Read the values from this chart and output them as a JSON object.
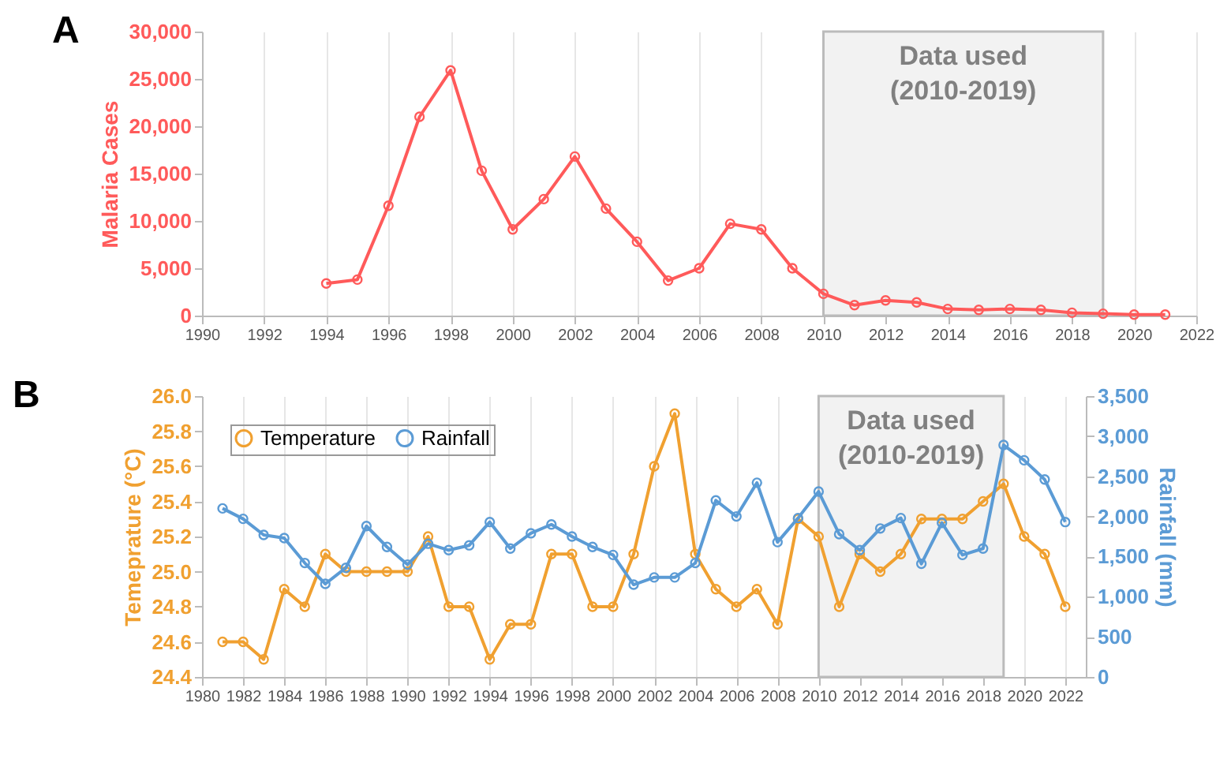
{
  "chart_data": [
    {
      "type": "line",
      "title": "A",
      "ylabel": "Malaria Cases",
      "x": [
        1994,
        1995,
        1996,
        1997,
        1998,
        1999,
        2000,
        2001,
        2002,
        2003,
        2004,
        2005,
        2006,
        2007,
        2008,
        2009,
        2010,
        2011,
        2012,
        2013,
        2014,
        2015,
        2016,
        2017,
        2018,
        2019,
        2020,
        2021
      ],
      "series": [
        {
          "color": "#ff5a5a",
          "values": [
            3400,
            3800,
            11600,
            21000,
            25900,
            15300,
            9100,
            12300,
            16800,
            11300,
            7800,
            3700,
            5000,
            9700,
            9100,
            5000,
            2300,
            1100,
            1600,
            1400,
            700,
            600,
            700,
            600,
            300,
            200,
            100,
            100
          ]
        }
      ],
      "xlim": [
        1990,
        2022
      ],
      "xticks": [
        1990,
        1992,
        1994,
        1996,
        1998,
        2000,
        2002,
        2004,
        2006,
        2008,
        2010,
        2012,
        2014,
        2016,
        2018,
        2020,
        2022
      ],
      "ylim": [
        0,
        30000
      ],
      "yticks": [
        0,
        {
          "value": 5000,
          "label": "5,000"
        },
        {
          "value": 10000,
          "label": "10,000"
        },
        {
          "value": 15000,
          "label": "15,000"
        },
        {
          "value": 20000,
          "label": "20,000"
        },
        {
          "value": 25000,
          "label": "25,000"
        },
        {
          "value": 30000,
          "label": "30,000"
        }
      ],
      "bands": [
        {
          "axis": "x",
          "from": 2010,
          "to": 2019,
          "label": "Data used (2010-2019)",
          "color": "#f2f2f2"
        }
      ],
      "grid": "x",
      "marker": "circle",
      "line_style": "solid"
    },
    {
      "type": "line",
      "title": "B",
      "ylabel": "Temeprature (°C)",
      "y2label": "Rainfall (mm)",
      "x": [
        1981,
        1982,
        1983,
        1984,
        1985,
        1986,
        1987,
        1988,
        1989,
        1990,
        1991,
        1992,
        1993,
        1994,
        1995,
        1996,
        1997,
        1998,
        1999,
        2000,
        2001,
        2002,
        2003,
        2004,
        2005,
        2006,
        2007,
        2008,
        2009,
        2010,
        2011,
        2012,
        2013,
        2014,
        2015,
        2016,
        2017,
        2018,
        2019,
        2020,
        2021,
        2022
      ],
      "series": [
        {
          "name": "Temperature",
          "color": "#f0a030",
          "values": [
            24.6,
            24.6,
            24.5,
            24.9,
            24.8,
            25.1,
            25.0,
            25.0,
            25.0,
            25.0,
            25.2,
            24.8,
            24.8,
            24.5,
            24.7,
            24.7,
            25.1,
            25.1,
            24.8,
            24.8,
            25.1,
            25.6,
            25.9,
            25.1,
            24.9,
            24.8,
            24.9,
            24.7,
            25.3,
            25.2,
            24.8,
            25.1,
            25.0,
            25.1,
            25.3,
            25.3,
            25.3,
            25.4,
            25.5,
            25.2,
            25.1,
            24.8
          ]
        },
        {
          "name": "Rainfall",
          "color": "#5b9bd5",
          "axis": "y2",
          "values": [
            2100,
            1970,
            1770,
            1730,
            1420,
            1160,
            1360,
            1880,
            1620,
            1400,
            1660,
            1580,
            1640,
            1930,
            1600,
            1790,
            1900,
            1750,
            1620,
            1520,
            1150,
            1240,
            1240,
            1420,
            2200,
            2000,
            2420,
            1680,
            1980,
            2310,
            1780,
            1580,
            1850,
            1980,
            1410,
            1920,
            1520,
            1600,
            2890,
            2700,
            2460,
            1930
          ]
        }
      ],
      "xlim": [
        1980,
        2023
      ],
      "xticks": [
        1980,
        1982,
        1984,
        1986,
        1988,
        1990,
        1992,
        1994,
        1996,
        1998,
        2000,
        2002,
        2004,
        2006,
        2008,
        2010,
        2012,
        2014,
        2016,
        2018,
        2020,
        2022
      ],
      "ylim": [
        24.4,
        26.0
      ],
      "yticks": [
        {
          "value": 24.4,
          "label": "24.4"
        },
        {
          "value": 24.6,
          "label": "24.6"
        },
        {
          "value": 24.8,
          "label": "24.8"
        },
        {
          "value": 25.0,
          "label": "25.0"
        },
        {
          "value": 25.2,
          "label": "25.2"
        },
        {
          "value": 25.4,
          "label": "25.4"
        },
        {
          "value": 25.6,
          "label": "25.6"
        },
        {
          "value": 25.8,
          "label": "25.8"
        },
        {
          "value": 26.0,
          "label": "26.0"
        }
      ],
      "y2lim": [
        0,
        3500
      ],
      "y2ticks": [
        0,
        500,
        {
          "value": 1000,
          "label": "1,000"
        },
        {
          "value": 1500,
          "label": "1,500"
        },
        {
          "value": 2000,
          "label": "2,000"
        },
        {
          "value": 2500,
          "label": "2,500"
        },
        {
          "value": 3000,
          "label": "3,000"
        },
        {
          "value": 3500,
          "label": "3,500"
        }
      ],
      "bands": [
        {
          "axis": "x",
          "from": 2010,
          "to": 2019,
          "label": "Data used (2010-2019)",
          "color": "#f2f2f2"
        }
      ],
      "grid": "x",
      "legend": "top left",
      "marker": "circle",
      "line_style": "solid"
    }
  ]
}
